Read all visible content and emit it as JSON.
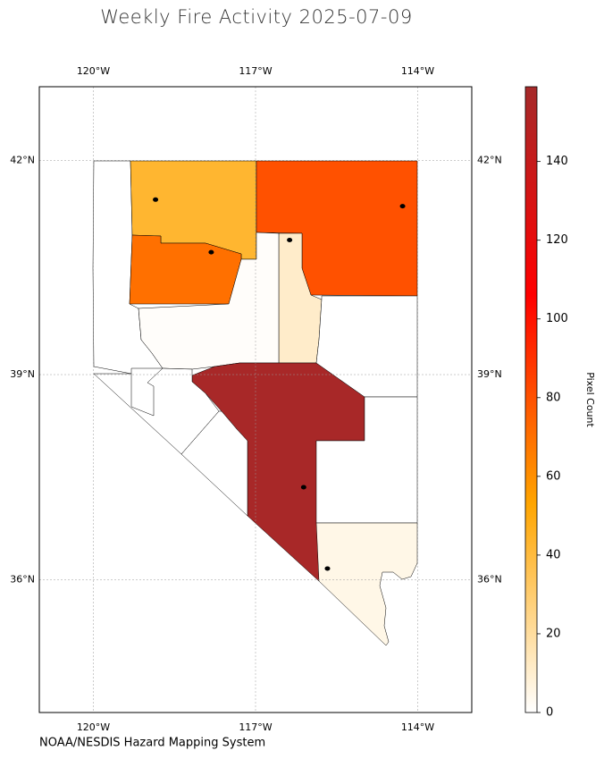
{
  "chart_data": {
    "type": "choropleth",
    "title": "Weekly Fire Activity 2025-07-09",
    "source": "NOAA/NESDIS Hazard Mapping System",
    "colorbar_label": "Pixel Count",
    "values": [
      0,
      43,
      70,
      80,
      11,
      1,
      157,
      0,
      0,
      5,
      0,
      0
    ],
    "colormap": [
      "#ffffff",
      "#ffa500",
      "#ff0000",
      "#a52a2a"
    ],
    "clim": [
      0,
      159
    ],
    "cticks": [
      0,
      20,
      40,
      60,
      80,
      100,
      120,
      140
    ],
    "xlim": [
      -121,
      -113
    ],
    "ylim": [
      34,
      43
    ],
    "xticks": [
      {
        "value": -120,
        "label": "120°W"
      },
      {
        "value": -117,
        "label": "117°W"
      },
      {
        "value": -114,
        "label": "114°W"
      }
    ],
    "yticks": [
      {
        "value": 42,
        "label": "42°N"
      },
      {
        "value": 39,
        "label": "39°N"
      },
      {
        "value": 36,
        "label": "36°N"
      }
    ],
    "grid": true,
    "fire_points": {
      "x": [
        -118.85,
        -117.82,
        -116.37,
        -116.11,
        -114.28,
        -115.67
      ],
      "y": [
        41.46,
        40.73,
        40.9,
        37.37,
        41.37,
        36.17
      ]
    }
  }
}
